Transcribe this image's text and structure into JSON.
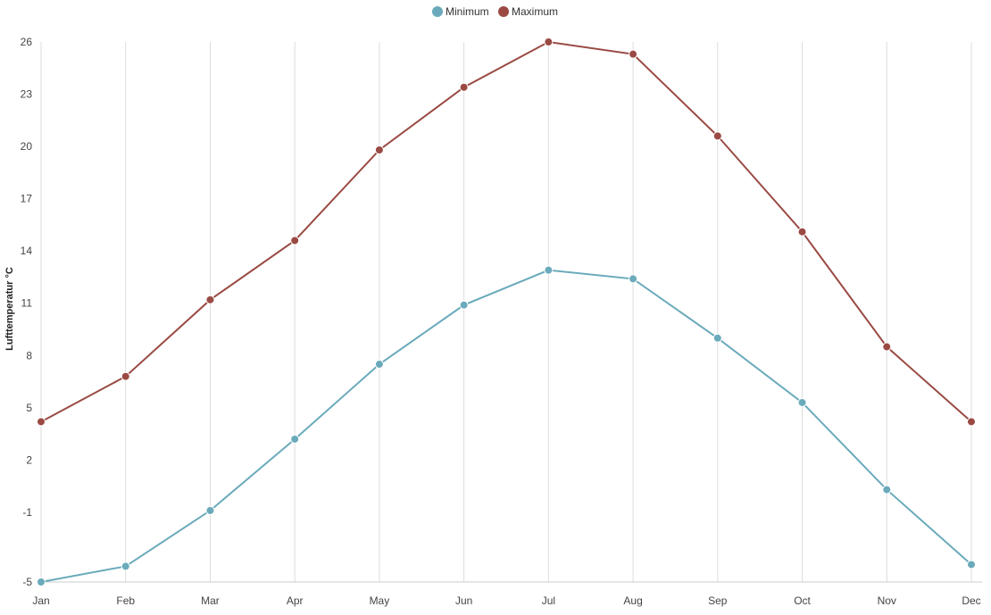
{
  "chart_data": {
    "type": "line",
    "categories": [
      "Jan",
      "Feb",
      "Mar",
      "Apr",
      "May",
      "Jun",
      "Jul",
      "Aug",
      "Sep",
      "Oct",
      "Nov",
      "Dec"
    ],
    "series": [
      {
        "name": "Minimum",
        "color": "#6aaabb",
        "values": [
          -5.0,
          -4.1,
          -0.9,
          3.2,
          7.5,
          10.9,
          12.9,
          12.4,
          9.0,
          5.3,
          0.3,
          -4.0
        ]
      },
      {
        "name": "Maximum",
        "color": "#9a4a43",
        "values": [
          4.2,
          6.8,
          11.2,
          14.6,
          19.8,
          23.4,
          26.0,
          25.3,
          20.6,
          15.1,
          8.5,
          4.2
        ]
      }
    ],
    "ylabel": "Lufttemperatur °C",
    "xlabel": "",
    "ylim": [
      -5,
      26
    ],
    "yticks": [
      -5,
      -1,
      2,
      5,
      8,
      11,
      14,
      17,
      20,
      23,
      26
    ],
    "ytick_labels": [
      "-5",
      "-1",
      "2",
      "5",
      "8",
      "11",
      "14",
      "17",
      "20",
      "23",
      "26"
    ],
    "grid": {
      "vertical": true,
      "horizontal": false,
      "color": "#dddddd"
    },
    "legend": "top-center"
  }
}
